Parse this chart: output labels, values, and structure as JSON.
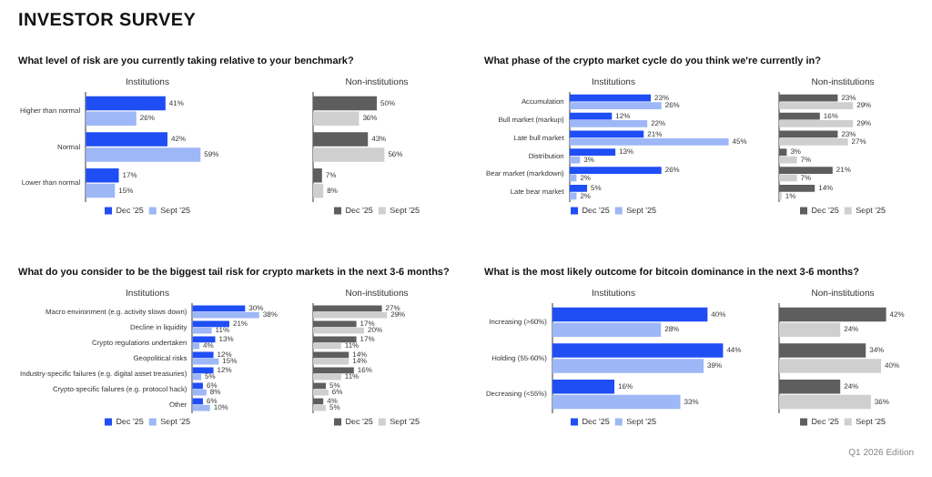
{
  "chart_data": [
    {
      "type": "bar",
      "orientation": "horizontal",
      "title": "Institutions",
      "subtitle": "What level of risk are you currently taking relative to your benchmark?",
      "annotations": [
        "INVESTOR SURVEY"
      ],
      "categories": [
        "Higher than normal",
        "Normal",
        "Lower than normal"
      ],
      "tick_labels": "y",
      "legend": "bottom",
      "series": [
        {
          "name": "Dec '25",
          "color": "#1f4ef5",
          "values": [
            41,
            42,
            17
          ],
          "value_labels": [
            "41%",
            "42%",
            "17%"
          ]
        },
        {
          "name": "Sept '25",
          "color": "#9db7f7",
          "values": [
            26,
            59,
            15
          ],
          "value_labels": [
            "26%",
            "59%",
            "15%"
          ]
        }
      ]
    },
    {
      "type": "bar",
      "orientation": "horizontal",
      "title": "Non-institutions",
      "categories": [
        null,
        null,
        null
      ],
      "tick_labels": false,
      "legend": "bottom",
      "series": [
        {
          "name": "Dec '25",
          "color": "#5e5e5e",
          "values": [
            50,
            43,
            7
          ],
          "value_labels": [
            "50%",
            "43%",
            "7%"
          ]
        },
        {
          "name": "Sept '25",
          "color": "#cfcfcf",
          "values": [
            36,
            56,
            8
          ],
          "value_labels": [
            "36%",
            "56%",
            "8%"
          ]
        }
      ]
    },
    {
      "type": "bar",
      "orientation": "horizontal",
      "title": "Institutions",
      "subtitle": "What phase of the crypto market cycle do you think we're currently in?",
      "categories": [
        "Accumulation",
        "Bull market (markup)",
        "Late bull market",
        "Distribution",
        "Bear market (markdown)",
        "Late bear market"
      ],
      "tick_labels": "y",
      "legend": "bottom",
      "series": [
        {
          "name": "Dec '25",
          "color": "#1f4ef5",
          "values": [
            23,
            12,
            21,
            13,
            26,
            5
          ],
          "value_labels": [
            "23%",
            "12%",
            "21%",
            "13%",
            "26%",
            "5%"
          ]
        },
        {
          "name": "Sept '25",
          "color": "#9db7f7",
          "values": [
            26,
            22,
            45,
            3,
            2,
            2
          ],
          "value_labels": [
            "26%",
            "22%",
            "45%",
            "3%",
            "2%",
            "2%"
          ]
        }
      ]
    },
    {
      "type": "bar",
      "orientation": "horizontal",
      "title": "Non-institutions",
      "categories": [
        null,
        null,
        null,
        null,
        null,
        null
      ],
      "tick_labels": false,
      "legend": "bottom",
      "series": [
        {
          "name": "Dec '25",
          "color": "#5e5e5e",
          "values": [
            23,
            16,
            23,
            3,
            21,
            14
          ],
          "value_labels": [
            "23%",
            "16%",
            "23%",
            "3%",
            "21%",
            "14%"
          ]
        },
        {
          "name": "Sept '25",
          "color": "#cfcfcf",
          "values": [
            29,
            29,
            27,
            7,
            7,
            1
          ],
          "value_labels": [
            "29%",
            "29%",
            "27%",
            "7%",
            "7%",
            "1%"
          ]
        }
      ]
    },
    {
      "type": "bar",
      "orientation": "horizontal",
      "title": "Institutions",
      "subtitle": "What do you consider to be the biggest tail risk for crypto markets in the next 3-6 months?",
      "categories": [
        "Macro environment (e.g. activity slows down)",
        "Decline in liquidity",
        "Crypto regulations undertaken",
        "Geopolitical risks",
        "Industry-specific failures (e.g. digital asset treasuries)",
        "Crypto-specific failures (e.g. protocol hack)",
        "Other"
      ],
      "tick_labels": "y",
      "legend": "bottom",
      "series": [
        {
          "name": "Dec '25",
          "color": "#1f4ef5",
          "values": [
            30,
            21,
            13,
            12,
            12,
            6,
            6
          ],
          "value_labels": [
            "30%",
            "21%",
            "13%",
            "12%",
            "12%",
            "6%",
            "6%"
          ]
        },
        {
          "name": "Sept '25",
          "color": "#9db7f7",
          "values": [
            38,
            11,
            4,
            15,
            5,
            8,
            10
          ],
          "value_labels": [
            "38%",
            "11%",
            "4%",
            "15%",
            "5%",
            "8%",
            "10%"
          ]
        }
      ]
    },
    {
      "type": "bar",
      "orientation": "horizontal",
      "title": "Non-institutions",
      "categories": [
        null,
        null,
        null,
        null,
        null,
        null,
        null
      ],
      "tick_labels": false,
      "legend": "bottom",
      "series": [
        {
          "name": "Dec '25",
          "color": "#5e5e5e",
          "values": [
            27,
            17,
            17,
            14,
            16,
            5,
            4
          ],
          "value_labels": [
            "27%",
            "17%",
            "17%",
            "14%",
            "16%",
            "5%",
            "4%"
          ]
        },
        {
          "name": "Sept '25",
          "color": "#cfcfcf",
          "values": [
            29,
            20,
            11,
            14,
            11,
            6,
            5
          ],
          "value_labels": [
            "29%",
            "20%",
            "11%",
            "14%",
            "11%",
            "6%",
            "5%"
          ]
        }
      ]
    },
    {
      "type": "bar",
      "orientation": "horizontal",
      "title": "Institutions",
      "subtitle": "What is the most likely outcome for bitcoin dominance in the next 3-6 months?",
      "categories": [
        "Increasing (>60%)",
        "Holding (55-60%)",
        "Decreasing (<55%)"
      ],
      "tick_labels": "y",
      "legend": "bottom",
      "series": [
        {
          "name": "Dec '25",
          "color": "#1f4ef5",
          "values": [
            40,
            44,
            16
          ],
          "value_labels": [
            "40%",
            "44%",
            "16%"
          ]
        },
        {
          "name": "Sept '25",
          "color": "#9db7f7",
          "values": [
            28,
            39,
            33
          ],
          "value_labels": [
            "28%",
            "39%",
            "33%"
          ]
        }
      ]
    },
    {
      "type": "bar",
      "orientation": "horizontal",
      "title": "Non-institutions",
      "annotations": [
        "Q1 2026 Edition"
      ],
      "categories": [
        null,
        null,
        null
      ],
      "tick_labels": false,
      "legend": "bottom",
      "series": [
        {
          "name": "Dec '25",
          "color": "#5e5e5e",
          "values": [
            42,
            34,
            24
          ],
          "value_labels": [
            "42%",
            "34%",
            "24%"
          ]
        },
        {
          "name": "Sept '25",
          "color": "#cfcfcf",
          "values": [
            24,
            40,
            36
          ],
          "value_labels": [
            "24%",
            "40%",
            "36%"
          ]
        }
      ]
    }
  ]
}
